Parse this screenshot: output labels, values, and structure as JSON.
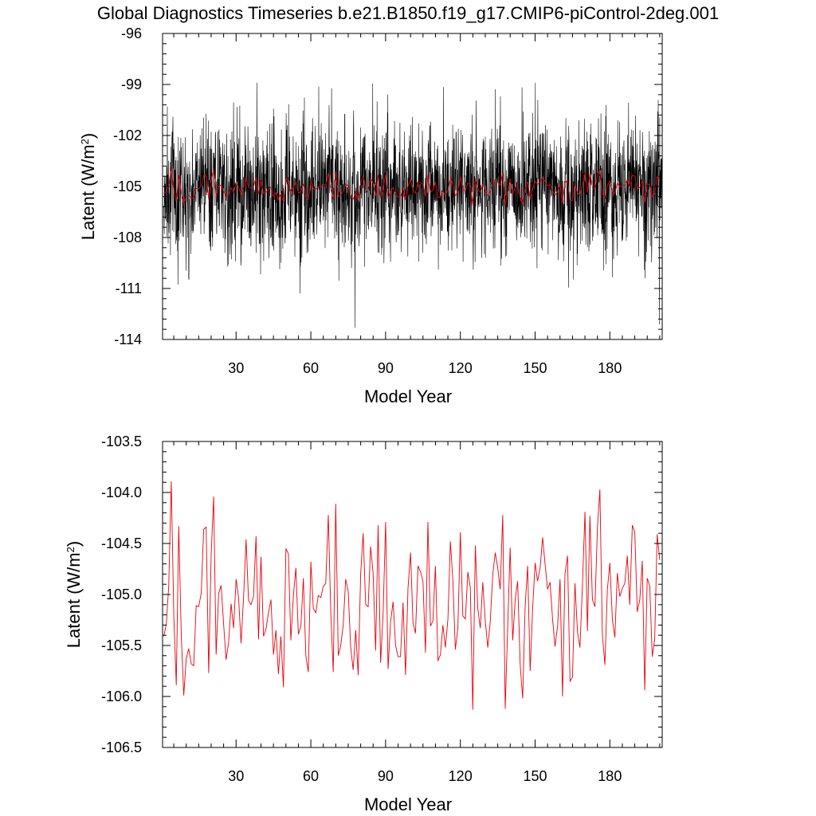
{
  "figure": {
    "title": "Global Diagnostics Timeseries b.e21.B1850.f19_g17.CMIP6-piControl-2deg.001"
  },
  "colors": {
    "monthly": "#000000",
    "annual": "#e8000b",
    "frame": "#000000"
  },
  "chart_data": [
    {
      "type": "line",
      "name": "monthly-and-annual-latent-heat",
      "xlabel": "Model Year",
      "ylabel": "Latent (W/m",
      "ylabel_sup": "2",
      "ylabel_close": ")",
      "xlim": [
        0.5,
        201
      ],
      "ylim": [
        -114,
        -96
      ],
      "xticks": [
        30,
        60,
        90,
        120,
        150,
        180
      ],
      "xtick_labels": [
        "30",
        "60",
        "90",
        "120",
        "150",
        "180"
      ],
      "yticks": [
        -114,
        -111,
        -108,
        -105,
        -102,
        -99,
        -96
      ],
      "ytick_labels": [
        "-114",
        "-111",
        "-108",
        "-105",
        "-102",
        "-99",
        "-96"
      ],
      "series": [
        {
          "name": "monthly",
          "color": "#000000",
          "generated": "monthly_from_annual",
          "resolution": "monthly"
        },
        {
          "name": "annual",
          "color": "#e8000b",
          "generated": "annual"
        }
      ]
    },
    {
      "type": "line",
      "name": "annual-latent-heat",
      "xlabel": "Model Year",
      "ylabel": "Latent (W/m",
      "ylabel_sup": "2",
      "ylabel_close": ")",
      "xlim": [
        0.5,
        201
      ],
      "ylim": [
        -106.5,
        -103.5
      ],
      "xticks": [
        30,
        60,
        90,
        120,
        150,
        180
      ],
      "xtick_labels": [
        "30",
        "60",
        "90",
        "120",
        "150",
        "180"
      ],
      "yticks": [
        -106.5,
        -106.0,
        -105.5,
        -105.0,
        -104.5,
        -104.0,
        -103.5
      ],
      "ytick_labels": [
        "-106.5",
        "-106.0",
        "-105.5",
        "-105.0",
        "-104.5",
        "-104.0",
        "-103.5"
      ],
      "series": [
        {
          "name": "annual",
          "color": "#e8000b",
          "generated": "annual"
        }
      ]
    }
  ]
}
